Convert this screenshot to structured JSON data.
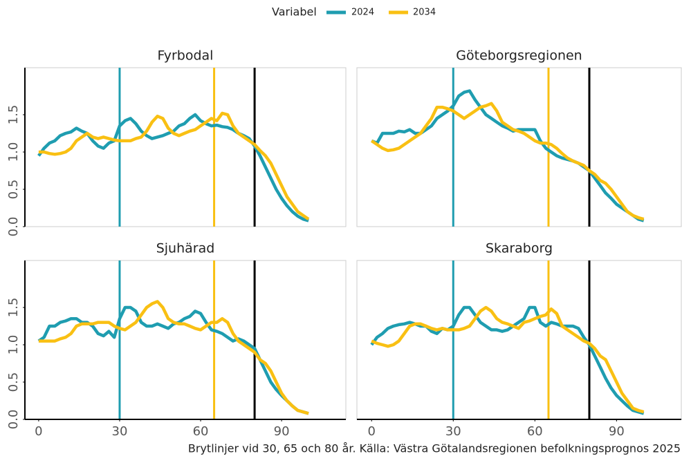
{
  "legend": {
    "title": "Variabel"
  },
  "caption": "Brytlinjer vid 30, 65 och 80 år. Källa: Västra Götalandsregionen befolkningsprognos 2025",
  "chart_data": [
    {
      "type": "line",
      "title": "Fyrbodal",
      "x": [
        0,
        2,
        4,
        6,
        8,
        10,
        12,
        14,
        16,
        18,
        20,
        22,
        24,
        26,
        28,
        30,
        32,
        34,
        36,
        38,
        40,
        42,
        44,
        46,
        48,
        50,
        52,
        54,
        56,
        58,
        60,
        62,
        64,
        66,
        68,
        70,
        72,
        74,
        76,
        78,
        80,
        82,
        84,
        86,
        88,
        90,
        92,
        94,
        96,
        98,
        100
      ],
      "series": [
        {
          "name": "2024",
          "color": "#1f9db0",
          "values": [
            0.95,
            1.05,
            1.12,
            1.15,
            1.22,
            1.25,
            1.27,
            1.32,
            1.28,
            1.25,
            1.15,
            1.08,
            1.05,
            1.12,
            1.15,
            1.35,
            1.42,
            1.45,
            1.38,
            1.28,
            1.22,
            1.18,
            1.2,
            1.22,
            1.25,
            1.28,
            1.35,
            1.38,
            1.45,
            1.5,
            1.42,
            1.38,
            1.35,
            1.36,
            1.34,
            1.33,
            1.3,
            1.25,
            1.22,
            1.18,
            1.08,
            0.95,
            0.8,
            0.65,
            0.5,
            0.38,
            0.28,
            0.2,
            0.14,
            0.1,
            0.08
          ]
        },
        {
          "name": "2034",
          "color": "#f9c013",
          "values": [
            1.0,
            1.0,
            0.98,
            0.97,
            0.98,
            1.0,
            1.05,
            1.15,
            1.2,
            1.25,
            1.2,
            1.18,
            1.2,
            1.18,
            1.16,
            1.15,
            1.15,
            1.15,
            1.18,
            1.2,
            1.28,
            1.4,
            1.48,
            1.45,
            1.32,
            1.25,
            1.22,
            1.25,
            1.28,
            1.3,
            1.35,
            1.4,
            1.45,
            1.42,
            1.52,
            1.5,
            1.35,
            1.25,
            1.2,
            1.15,
            1.1,
            1.02,
            0.95,
            0.85,
            0.7,
            0.55,
            0.4,
            0.3,
            0.2,
            0.15,
            0.1
          ]
        }
      ],
      "xlim": [
        -5.1,
        113.8
      ],
      "ylim": [
        0,
        2.13
      ],
      "yticks": [
        {
          "value": 0,
          "label": "0.0"
        },
        0.5,
        {
          "value": 1,
          "label": "1.0"
        },
        1.5
      ],
      "vlines": [
        {
          "value": 30,
          "color": "#1f9db0"
        },
        {
          "value": 65,
          "color": "#f9c013"
        },
        {
          "value": 80,
          "color": "#000000"
        }
      ]
    },
    {
      "type": "line",
      "title": "Göteborgsregionen",
      "x": [
        0,
        2,
        4,
        6,
        8,
        10,
        12,
        14,
        16,
        18,
        20,
        22,
        24,
        26,
        28,
        30,
        32,
        34,
        36,
        38,
        40,
        42,
        44,
        46,
        48,
        50,
        52,
        54,
        56,
        58,
        60,
        62,
        64,
        66,
        68,
        70,
        72,
        74,
        76,
        78,
        80,
        82,
        84,
        86,
        88,
        90,
        92,
        94,
        96,
        98,
        100
      ],
      "series": [
        {
          "name": "2024",
          "color": "#1f9db0",
          "values": [
            1.15,
            1.12,
            1.25,
            1.25,
            1.25,
            1.28,
            1.27,
            1.3,
            1.25,
            1.25,
            1.3,
            1.35,
            1.45,
            1.5,
            1.55,
            1.62,
            1.75,
            1.8,
            1.82,
            1.7,
            1.6,
            1.5,
            1.45,
            1.4,
            1.35,
            1.32,
            1.28,
            1.3,
            1.3,
            1.3,
            1.3,
            1.15,
            1.05,
            1.0,
            0.95,
            0.92,
            0.9,
            0.88,
            0.85,
            0.8,
            0.75,
            0.65,
            0.55,
            0.45,
            0.38,
            0.3,
            0.25,
            0.2,
            0.15,
            0.1,
            0.08
          ]
        },
        {
          "name": "2034",
          "color": "#f9c013",
          "values": [
            1.15,
            1.1,
            1.05,
            1.02,
            1.03,
            1.05,
            1.1,
            1.15,
            1.2,
            1.25,
            1.35,
            1.45,
            1.6,
            1.6,
            1.58,
            1.55,
            1.5,
            1.45,
            1.5,
            1.55,
            1.6,
            1.62,
            1.65,
            1.55,
            1.4,
            1.35,
            1.3,
            1.28,
            1.25,
            1.2,
            1.15,
            1.12,
            1.12,
            1.1,
            1.05,
            0.98,
            0.92,
            0.88,
            0.85,
            0.82,
            0.75,
            0.7,
            0.62,
            0.58,
            0.5,
            0.4,
            0.3,
            0.2,
            0.15,
            0.12,
            0.1
          ]
        }
      ],
      "xlim": [
        -5.4,
        113.8
      ],
      "ylim": [
        0,
        2.13
      ],
      "vlines": [
        {
          "value": 30,
          "color": "#1f9db0"
        },
        {
          "value": 65,
          "color": "#f9c013"
        },
        {
          "value": 80,
          "color": "#000000"
        }
      ]
    },
    {
      "type": "line",
      "title": "Sjuhärad",
      "x": [
        0,
        2,
        4,
        6,
        8,
        10,
        12,
        14,
        16,
        18,
        20,
        22,
        24,
        26,
        28,
        30,
        32,
        34,
        36,
        38,
        40,
        42,
        44,
        46,
        48,
        50,
        52,
        54,
        56,
        58,
        60,
        62,
        64,
        66,
        68,
        70,
        72,
        74,
        76,
        78,
        80,
        82,
        84,
        86,
        88,
        90,
        92,
        94,
        96,
        98,
        100
      ],
      "series": [
        {
          "name": "2024",
          "color": "#1f9db0",
          "values": [
            1.05,
            1.1,
            1.25,
            1.25,
            1.3,
            1.32,
            1.35,
            1.35,
            1.3,
            1.3,
            1.25,
            1.15,
            1.12,
            1.18,
            1.1,
            1.35,
            1.5,
            1.5,
            1.45,
            1.3,
            1.25,
            1.25,
            1.28,
            1.25,
            1.22,
            1.28,
            1.3,
            1.35,
            1.38,
            1.45,
            1.42,
            1.3,
            1.2,
            1.18,
            1.15,
            1.1,
            1.05,
            1.08,
            1.05,
            1.0,
            0.95,
            0.8,
            0.65,
            0.5,
            0.4,
            0.32,
            0.25,
            0.18,
            0.12,
            0.1,
            0.08
          ]
        },
        {
          "name": "2034",
          "color": "#f9c013",
          "values": [
            1.05,
            1.05,
            1.05,
            1.05,
            1.08,
            1.1,
            1.15,
            1.25,
            1.28,
            1.28,
            1.28,
            1.3,
            1.3,
            1.3,
            1.25,
            1.22,
            1.2,
            1.25,
            1.3,
            1.4,
            1.5,
            1.55,
            1.58,
            1.5,
            1.35,
            1.3,
            1.28,
            1.28,
            1.25,
            1.22,
            1.2,
            1.25,
            1.3,
            1.3,
            1.35,
            1.3,
            1.15,
            1.05,
            1.0,
            0.95,
            0.9,
            0.8,
            0.75,
            0.65,
            0.5,
            0.35,
            0.25,
            0.18,
            0.12,
            0.1,
            0.08
          ]
        }
      ],
      "xlim": [
        -5.1,
        113.8
      ],
      "ylim": [
        0,
        2.13
      ],
      "xticks": [
        0,
        30,
        60,
        90
      ],
      "yticks": [
        {
          "value": 0,
          "label": "0.0"
        },
        0.5,
        {
          "value": 1,
          "label": "1.0"
        },
        1.5
      ],
      "vlines": [
        {
          "value": 30,
          "color": "#1f9db0"
        },
        {
          "value": 65,
          "color": "#f9c013"
        },
        {
          "value": 80,
          "color": "#000000"
        }
      ]
    },
    {
      "type": "line",
      "title": "Skaraborg",
      "x": [
        0,
        2,
        4,
        6,
        8,
        10,
        12,
        14,
        16,
        18,
        20,
        22,
        24,
        26,
        28,
        30,
        32,
        34,
        36,
        38,
        40,
        42,
        44,
        46,
        48,
        50,
        52,
        54,
        56,
        58,
        60,
        62,
        64,
        66,
        68,
        70,
        72,
        74,
        76,
        78,
        80,
        82,
        84,
        86,
        88,
        90,
        92,
        94,
        96,
        98,
        100
      ],
      "series": [
        {
          "name": "2024",
          "color": "#1f9db0",
          "values": [
            1.0,
            1.1,
            1.15,
            1.22,
            1.25,
            1.27,
            1.28,
            1.3,
            1.28,
            1.25,
            1.25,
            1.18,
            1.15,
            1.22,
            1.2,
            1.25,
            1.4,
            1.5,
            1.5,
            1.4,
            1.3,
            1.25,
            1.2,
            1.2,
            1.18,
            1.2,
            1.25,
            1.3,
            1.35,
            1.5,
            1.5,
            1.3,
            1.25,
            1.3,
            1.28,
            1.25,
            1.25,
            1.25,
            1.22,
            1.1,
            1.0,
            0.85,
            0.7,
            0.55,
            0.42,
            0.32,
            0.25,
            0.18,
            0.12,
            0.1,
            0.08
          ]
        },
        {
          "name": "2034",
          "color": "#f9c013",
          "values": [
            1.05,
            1.02,
            1.0,
            0.98,
            1.0,
            1.05,
            1.15,
            1.25,
            1.28,
            1.28,
            1.25,
            1.22,
            1.2,
            1.22,
            1.2,
            1.2,
            1.2,
            1.22,
            1.25,
            1.35,
            1.45,
            1.5,
            1.45,
            1.35,
            1.3,
            1.28,
            1.25,
            1.22,
            1.3,
            1.32,
            1.35,
            1.38,
            1.4,
            1.48,
            1.42,
            1.25,
            1.2,
            1.15,
            1.1,
            1.05,
            1.02,
            0.95,
            0.85,
            0.8,
            0.65,
            0.5,
            0.35,
            0.25,
            0.15,
            0.12,
            0.1
          ]
        }
      ],
      "xlim": [
        -5.4,
        113.8
      ],
      "ylim": [
        0,
        2.13
      ],
      "xticks": [
        0,
        30,
        60,
        90
      ],
      "vlines": [
        {
          "value": 30,
          "color": "#1f9db0"
        },
        {
          "value": 65,
          "color": "#f9c013"
        },
        {
          "value": 80,
          "color": "#000000"
        }
      ]
    }
  ]
}
